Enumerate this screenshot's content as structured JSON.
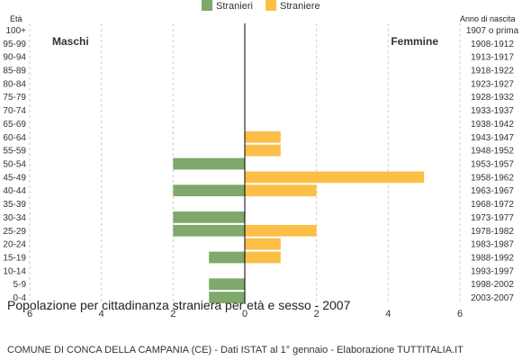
{
  "chart_data": {
    "type": "bar",
    "orientation": "horizontal-population-pyramid",
    "title": "Popolazione per cittadinanza straniera per età e sesso - 2007",
    "subtitle": "COMUNE DI CONCA DELLA CAMPANIA (CE) - Dati ISTAT al 1° gennaio - Elaborazione TUTTITALIA.IT",
    "left_axis_label": "Età",
    "right_axis_label": "Anno di nascita",
    "left_side_label": "Maschi",
    "right_side_label": "Femmine",
    "xlim": [
      -6,
      6
    ],
    "x_ticks": [
      "6",
      "4",
      "2",
      "0",
      "2",
      "4",
      "6"
    ],
    "grid": true,
    "legend_position": "top-center",
    "colors": {
      "males": "#7fa86a",
      "females": "#fbbf47",
      "grid": "#cccccc",
      "axis": "#000000"
    },
    "categories": [
      "100+",
      "95-99",
      "90-94",
      "85-89",
      "80-84",
      "75-79",
      "70-74",
      "65-69",
      "60-64",
      "55-59",
      "50-54",
      "45-49",
      "40-44",
      "35-39",
      "30-34",
      "25-29",
      "20-24",
      "15-19",
      "10-14",
      "5-9",
      "0-4"
    ],
    "birth_years": [
      "1907 o prima",
      "1908-1912",
      "1913-1917",
      "1918-1922",
      "1923-1927",
      "1928-1932",
      "1933-1937",
      "1938-1942",
      "1943-1947",
      "1948-1952",
      "1953-1957",
      "1958-1962",
      "1963-1967",
      "1968-1972",
      "1973-1977",
      "1978-1982",
      "1983-1987",
      "1988-1992",
      "1993-1997",
      "1998-2002",
      "2003-2007"
    ],
    "series": [
      {
        "name": "Stranieri",
        "values": [
          0,
          0,
          0,
          0,
          0,
          0,
          0,
          0,
          0,
          0,
          2,
          0,
          2,
          0,
          2,
          2,
          0,
          1,
          0,
          1,
          1
        ]
      },
      {
        "name": "Straniere",
        "values": [
          0,
          0,
          0,
          0,
          0,
          0,
          0,
          0,
          1,
          1,
          0,
          5,
          2,
          0,
          0,
          2,
          1,
          1,
          0,
          0,
          0
        ]
      }
    ]
  }
}
